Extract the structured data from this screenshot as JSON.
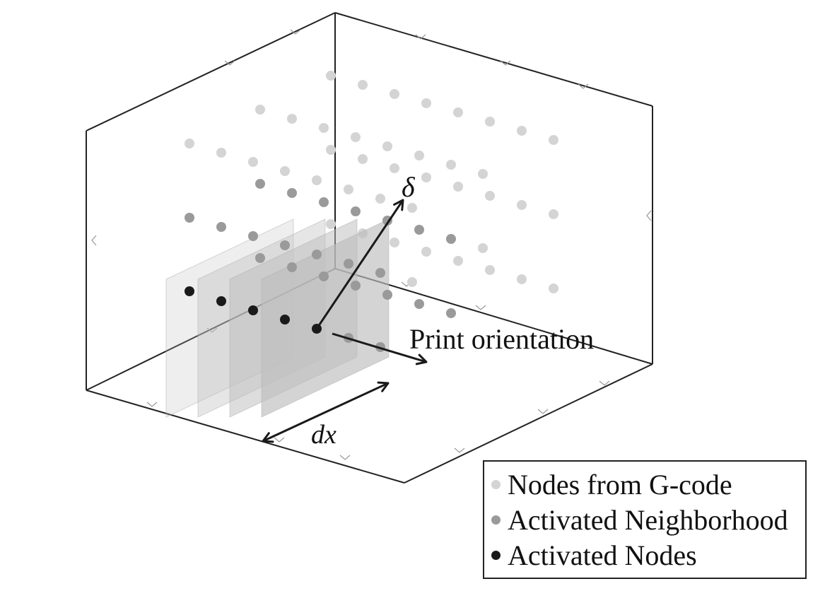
{
  "labels": {
    "delta": "δ",
    "print_orientation": "Print orientation",
    "dx": "dx"
  },
  "legend": {
    "items": [
      {
        "label": "Nodes from G-code",
        "color": "#d4d4d4"
      },
      {
        "label": "Activated Neighborhood",
        "color": "#9a9a9a"
      },
      {
        "label": "Activated Nodes",
        "color": "#1a1a1a"
      }
    ]
  },
  "colors": {
    "box_edge": "#222222",
    "tick": "#999999",
    "plane_fill": "#bdbdbd",
    "arrow": "#1a1a1a"
  }
}
